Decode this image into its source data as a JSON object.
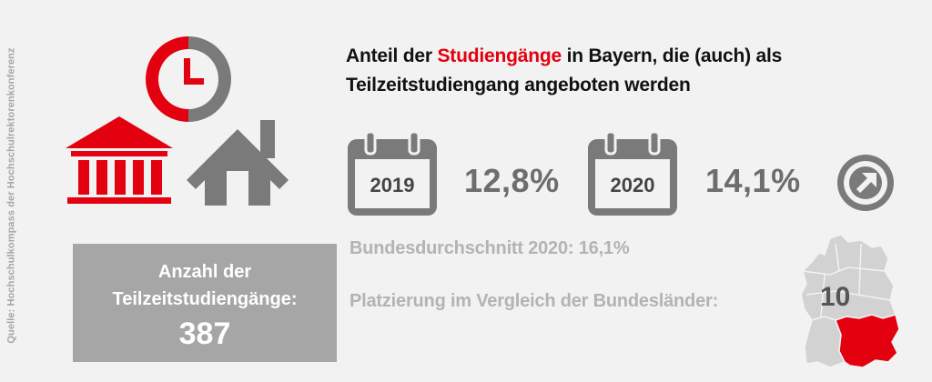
{
  "source": "Quelle: Hochschulkompass der Hochschulrektorenkonferenz",
  "headline": {
    "part1": "Anteil der ",
    "highlight": "Studiengänge",
    "part2": " in Bayern, die (auch) als",
    "line2": "Teilzeitstudiengang angeboten werden"
  },
  "years": [
    {
      "year": "2019",
      "share": "12,8%"
    },
    {
      "year": "2020",
      "share": "14,1%"
    }
  ],
  "trend_icon": "arrow-up-right-circle-icon",
  "count": {
    "label_line1": "Anzahl der",
    "label_line2": "Teilzeitstudiengänge:",
    "value": "387"
  },
  "federal_average": "Bundesdurchschnitt 2020: 16,1%",
  "ranking": {
    "label": "Platzierung im Vergleich der Bundesländer:",
    "value": "10"
  },
  "colors": {
    "accent": "#e3000f",
    "icon_gray": "#7a7a7a",
    "box_gray": "#a6a6a6",
    "background": "#f2f2f2"
  },
  "icons": [
    "clock-icon",
    "university-building-icon",
    "house-icon",
    "calendar-icon",
    "germany-map-icon"
  ]
}
